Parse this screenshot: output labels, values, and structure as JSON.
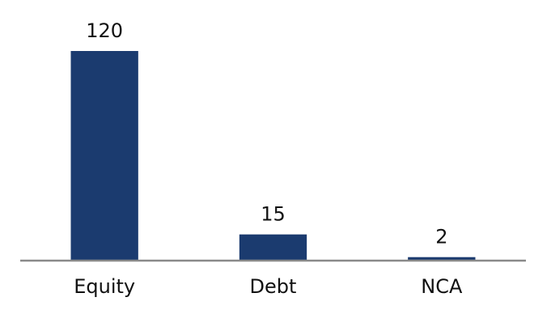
{
  "chart_data": {
    "type": "bar",
    "categories": [
      "Equity",
      "Debt",
      "NCA"
    ],
    "values": [
      120,
      15,
      2
    ],
    "color": "#1b3b6f",
    "ylim": [
      0,
      120
    ]
  }
}
